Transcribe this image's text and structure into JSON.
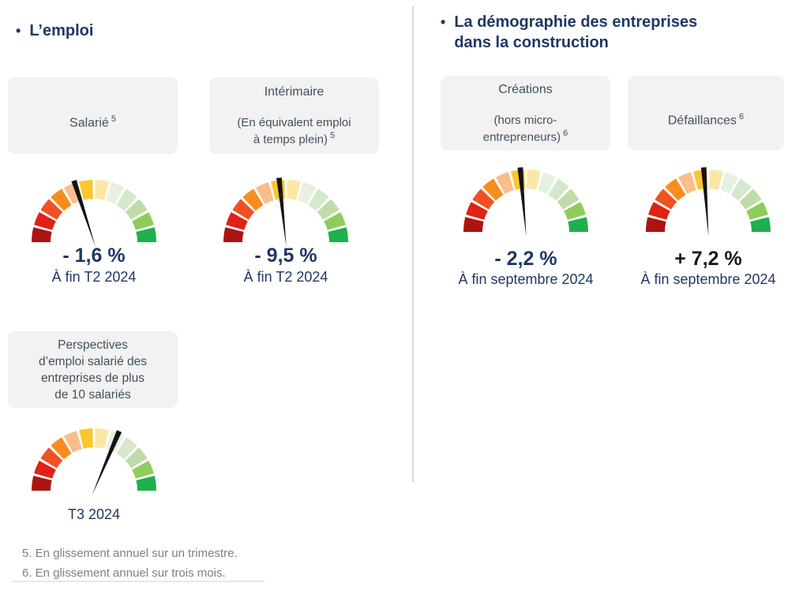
{
  "colors": {
    "heading": "#1F3864",
    "card_bg": "#F2F2F2",
    "card_text": "#42505F",
    "period_label": "#1F3864",
    "footnote": "#7F7F7F",
    "divider": "#D9D9D9"
  },
  "sections": {
    "emploi": {
      "bullet": "•",
      "title": "L’emploi"
    },
    "demographie": {
      "bullet": "•",
      "title": "La démographie des entreprises\ndans la construction"
    }
  },
  "cards": [
    {
      "title": "Salarié",
      "subtitle": "",
      "ref": "5"
    },
    {
      "title": "Intérimaire",
      "subtitle": "(En équivalent emploi\nà temps plein)",
      "ref": "5"
    },
    {
      "title": "Perspectives\nd’emploi salarié des\nentreprises de plus\nde 10 salariés",
      "subtitle": "",
      "ref": ""
    },
    {
      "title": "Créations",
      "subtitle": "(hors micro-\nentrepreneurs)",
      "ref": "6"
    },
    {
      "title": "Défaillances",
      "subtitle": "",
      "ref": "6"
    }
  ],
  "chart_data": [
    {
      "type": "gauge",
      "name": "emploi-salarie",
      "title": "Salarié",
      "value": -1.6,
      "unit": "%",
      "value_label": "- 1,6 %",
      "period": "À fin T2 2024",
      "needle_deg": 108,
      "value_color": "#1F3864",
      "scale": "red-left to green-right, 12 segments over 180°"
    },
    {
      "type": "gauge",
      "name": "emploi-interimaire",
      "title": "Intérimaire (En équivalent emploi à temps plein)",
      "value": -9.5,
      "unit": "%",
      "value_label": "- 9,5 %",
      "period": "À fin T2 2024",
      "needle_deg": 96,
      "value_color": "#1F3864",
      "scale": "red-left to green-right, 12 segments over 180°"
    },
    {
      "type": "gauge",
      "name": "creations-hors-micro-entrepreneurs",
      "title": "Créations (hors micro-entrepreneurs)",
      "value": -2.2,
      "unit": "%",
      "value_label": "- 2,2 %",
      "period": "À fin septembre 2024",
      "needle_deg": 95,
      "value_color": "#1F3864",
      "scale": "red-left to green-right, 12 segments over 180°"
    },
    {
      "type": "gauge",
      "name": "defaillances",
      "title": "Défaillances",
      "value": 7.2,
      "unit": "%",
      "value_label": "+ 7,2 %",
      "period": "À fin septembre 2024",
      "needle_deg": 94,
      "value_color": "#1A1A1A",
      "scale": "red-left to green-right, 12 segments over 180°"
    },
    {
      "type": "gauge",
      "name": "perspectives-emploi-salarie",
      "title": "Perspectives d’emploi salarié des entreprises de plus de 10 salariés",
      "value": null,
      "unit": "",
      "value_label": "",
      "period": "T3 2024",
      "needle_deg": 67,
      "value_color": "#1F3864",
      "scale": "red-left to green-right, 12 segments over 180°"
    }
  ],
  "gauge_style": {
    "segment_count": 12,
    "gap_deg": 2.4,
    "segment_colors": [
      "#AC1411",
      "#E02114",
      "#F05123",
      "#F98C1E",
      "#FBBD8B",
      "#FDC630",
      "#FBE7A5",
      "#E7F0E1",
      "#D6E8CB",
      "#BFDCA8",
      "#8CCD5C",
      "#1DB04C"
    ],
    "needle_color": "#141414"
  },
  "footnotes": [
    "5. En glissement annuel sur un trimestre.",
    "6. En glissement annuel sur trois mois."
  ]
}
